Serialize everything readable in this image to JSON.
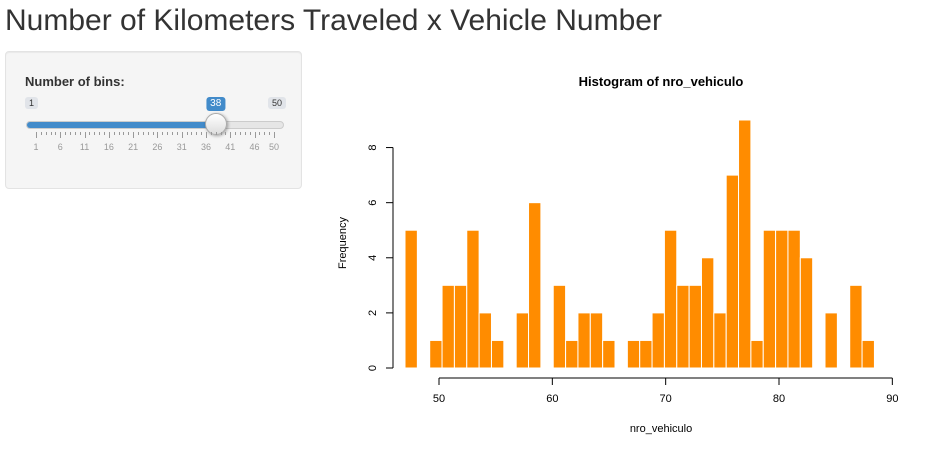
{
  "page": {
    "title": "Number of Kilometers Traveled x Vehicle Number"
  },
  "slider": {
    "label": "Number of bins:",
    "min": 1,
    "max": 50,
    "min_label": "1",
    "max_label": "50",
    "value": 38,
    "value_label": "38",
    "tick_labels": [
      "1",
      "6",
      "11",
      "16",
      "21",
      "26",
      "31",
      "36",
      "41",
      "46",
      "50"
    ],
    "accent_color": "#428bca"
  },
  "chart_data": {
    "type": "bar",
    "title": "Histogram of nro_vehiculo",
    "xlabel": "nro_vehiculo",
    "ylabel": "Frequency",
    "bin_width": 1.09,
    "bin_start": 47.0,
    "values": [
      5,
      0,
      1,
      3,
      3,
      5,
      2,
      1,
      0,
      2,
      6,
      0,
      3,
      1,
      2,
      2,
      1,
      0,
      1,
      1,
      2,
      5,
      3,
      3,
      4,
      2,
      7,
      9,
      1,
      5,
      5,
      5,
      4,
      0,
      2,
      0,
      3,
      1
    ],
    "xlim": [
      47,
      92
    ],
    "xticks": [
      50,
      60,
      70,
      80,
      90
    ],
    "xtick_labels": [
      "50",
      "60",
      "70",
      "80",
      "90"
    ],
    "ylim": [
      0,
      9
    ],
    "yticks": [
      0,
      2,
      4,
      6,
      8
    ],
    "ytick_labels": [
      "0",
      "2",
      "4",
      "6",
      "8"
    ],
    "bar_color": "#ff8c00",
    "grid": false
  }
}
